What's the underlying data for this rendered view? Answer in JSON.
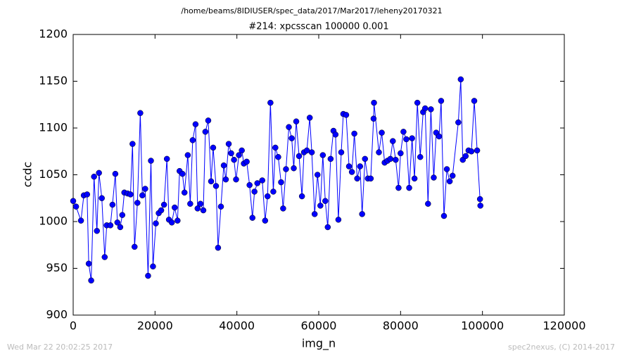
{
  "chart_data": {
    "type": "line",
    "suptitle": "/home/beams/8IDIUSER/spec_data/2017/Mar2017/leheny20170321",
    "title": "#214: xpcsscan 100000 0.001",
    "xlabel": "img_n",
    "ylabel": "ccdc",
    "footer": {
      "left": "Wed Mar 22 20:02:25 2017",
      "right": "spec2nexus, (C) 2014-2017"
    },
    "xlim": [
      0,
      120000
    ],
    "xticks": [
      0,
      20000,
      40000,
      60000,
      80000,
      100000,
      120000
    ],
    "ylim": [
      900,
      1200
    ],
    "yticks": [
      900,
      950,
      1000,
      1050,
      1100,
      1150,
      1200
    ],
    "grid": false,
    "x": [
      0,
      700,
      1900,
      2600,
      3400,
      3800,
      4400,
      5100,
      5800,
      6300,
      7000,
      7700,
      8200,
      9100,
      9600,
      10300,
      10800,
      11500,
      12000,
      12500,
      13300,
      14000,
      14500,
      15000,
      15700,
      16400,
      16900,
      17600,
      18300,
      19000,
      19500,
      20200,
      20900,
      21500,
      22200,
      22900,
      23400,
      24100,
      24800,
      25500,
      26000,
      26700,
      27200,
      28000,
      28600,
      29200,
      29900,
      30400,
      31100,
      31800,
      32300,
      33000,
      33700,
      34200,
      34900,
      35400,
      36100,
      36800,
      37300,
      38000,
      38600,
      39300,
      39800,
      40500,
      41200,
      41700,
      42400,
      43100,
      43800,
      44300,
      45000,
      46200,
      46900,
      47500,
      48200,
      48900,
      49400,
      50100,
      50800,
      51300,
      52000,
      52700,
      53400,
      53900,
      54500,
      55200,
      55900,
      56400,
      57100,
      57800,
      58300,
      59000,
      59700,
      60400,
      61000,
      61600,
      62200,
      62900,
      63600,
      64100,
      64800,
      65500,
      66000,
      66700,
      67400,
      68100,
      68700,
      69400,
      70100,
      70600,
      71300,
      72000,
      72700,
      73400,
      73500,
      74700,
      75400,
      76100,
      76800,
      77500,
      78100,
      78800,
      79500,
      80000,
      80700,
      81400,
      82100,
      82800,
      83400,
      84100,
      84800,
      85500,
      86000,
      86700,
      87400,
      88100,
      88700,
      89400,
      89900,
      90600,
      91300,
      92000,
      92700,
      94100,
      94700,
      95200,
      95900,
      96600,
      97300,
      98000,
      98700,
      99400,
      99500
    ],
    "series": [
      {
        "name": "ccdc",
        "color": "#0000ff",
        "values": [
          1022,
          1016,
          1001,
          1028,
          1029,
          955,
          937,
          1048,
          990,
          1052,
          1025,
          962,
          996,
          996,
          1018,
          1051,
          999,
          994,
          1007,
          1031,
          1030,
          1029,
          1083,
          973,
          1020,
          1116,
          1028,
          1035,
          942,
          1065,
          952,
          998,
          1009,
          1012,
          1018,
          1067,
          1002,
          999,
          1015,
          1001,
          1054,
          1051,
          1031,
          1071,
          1019,
          1087,
          1104,
          1014,
          1019,
          1012,
          1096,
          1108,
          1043,
          1079,
          1038,
          972,
          1016,
          1060,
          1045,
          1083,
          1073,
          1066,
          1045,
          1071,
          1076,
          1062,
          1064,
          1039,
          1004,
          1032,
          1041,
          1044,
          1001,
          1027,
          1127,
          1032,
          1079,
          1069,
          1042,
          1014,
          1056,
          1101,
          1089,
          1057,
          1107,
          1070,
          1027,
          1074,
          1076,
          1111,
          1074,
          1008,
          1050,
          1017,
          1071,
          1022,
          994,
          1067,
          1097,
          1093,
          1002,
          1074,
          1115,
          1114,
          1059,
          1053,
          1094,
          1046,
          1059,
          1008,
          1067,
          1046,
          1046,
          1110,
          1127,
          1074,
          1095,
          1063,
          1065,
          1067,
          1086,
          1066,
          1036,
          1073,
          1096,
          1088,
          1036,
          1089,
          1046,
          1127,
          1069,
          1117,
          1121,
          1019,
          1120,
          1047,
          1095,
          1091,
          1129,
          1006,
          1056,
          1043,
          1049,
          1106,
          1152,
          1066,
          1070,
          1076,
          1075,
          1129,
          1076,
          1024,
          1017
        ]
      }
    ]
  }
}
